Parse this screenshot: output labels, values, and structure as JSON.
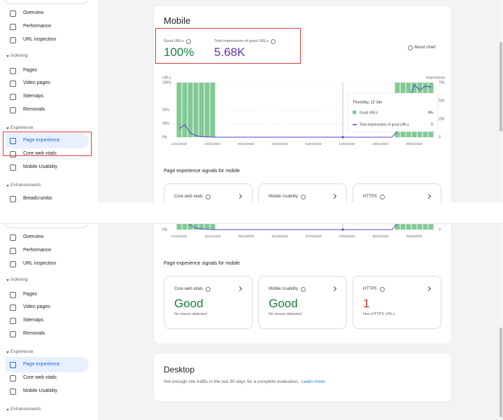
{
  "nav": {
    "items": [
      "Overview",
      "Performance",
      "URL inspection"
    ],
    "sections": [
      {
        "title": "Indexing",
        "items": [
          "Pages",
          "Video pages",
          "Sitemaps",
          "Removals"
        ]
      },
      {
        "title": "Experience",
        "items": [
          "Page experience",
          "Core web vitals",
          "Mobile Usability"
        ]
      },
      {
        "title": "Enhancements",
        "items": [
          "Breadcrumbs"
        ]
      }
    ]
  },
  "mobile": {
    "title": "Mobile",
    "metrics": [
      {
        "label": "Good URLs",
        "value": "100%"
      },
      {
        "label": "Total impressions of good URLs",
        "value": "5.68K"
      }
    ],
    "about": "About chart",
    "chart": {
      "type": "bar",
      "y_label": "URLs",
      "y2_label": "Impressions",
      "categories": [
        "14/11/2022",
        null,
        null,
        null,
        null,
        null,
        "26/11/2022",
        null,
        null,
        null,
        null,
        null,
        "08/12/2022",
        null,
        null,
        null,
        null,
        null,
        "20/12/2022",
        null,
        null,
        null,
        null,
        null,
        "01/01/2023",
        null,
        null,
        null,
        null,
        null,
        "13/01/2023",
        null,
        null,
        null,
        null,
        null,
        "25/01/2023",
        null,
        null,
        null,
        null,
        null,
        "06/02/2023",
        null,
        null,
        null
      ],
      "series": [
        {
          "name": "Good URLs",
          "color": "#81c995",
          "values": [
            100,
            100,
            100,
            100,
            100,
            100,
            100,
            0,
            0,
            0,
            0,
            0,
            0,
            0,
            0,
            0,
            0,
            0,
            0,
            0,
            0,
            0,
            0,
            0,
            0,
            0,
            0,
            0,
            0,
            0,
            0,
            0,
            0,
            0,
            0,
            0,
            0,
            0,
            0,
            100,
            100,
            100,
            100,
            100,
            100,
            100
          ]
        },
        {
          "name": "Total impressions of good URLs",
          "color": "#5b3fd0",
          "axis": "y2",
          "values": [
            120,
            170,
            60,
            20,
            10,
            5,
            0,
            0,
            0,
            0,
            0,
            0,
            0,
            0,
            0,
            0,
            0,
            0,
            0,
            0,
            0,
            0,
            0,
            0,
            0,
            0,
            0,
            0,
            0,
            0,
            0,
            0,
            0,
            0,
            0,
            0,
            0,
            0,
            0,
            80,
            300,
            500,
            720,
            650,
            700,
            690
          ]
        }
      ],
      "ylim": [
        0,
        100
      ],
      "yticks": [
        {
          "value": 100,
          "label": "100%"
        },
        {
          "value": 50,
          "label": "50%"
        },
        {
          "value": 25,
          "label": "25%"
        },
        {
          "value": 0,
          "label": "0%"
        }
      ],
      "y2lim": [
        0,
        750
      ],
      "y2ticks": [
        750,
        500,
        250,
        0
      ],
      "grid": true
    },
    "tooltip": {
      "date": "Thursday, 12 Jan",
      "values": [
        {
          "value": 0,
          "label": "0%"
        },
        0
      ]
    }
  },
  "signals": {
    "title": "Page experience signals for mobile",
    "cards": [
      {
        "title": "Core web vitals",
        "status": "Good",
        "detail": "No issues detected"
      },
      {
        "title": "Mobile Usability",
        "status": "Good",
        "detail": "No issues detected"
      },
      {
        "title": "HTTPS",
        "status": "1",
        "detail": "Non-HTTPS URLs"
      }
    ]
  },
  "desktop": {
    "title": "Desktop",
    "text": "Not enough site traffic in the last 90 days for a complete evaluation.",
    "link": "Learn more"
  }
}
